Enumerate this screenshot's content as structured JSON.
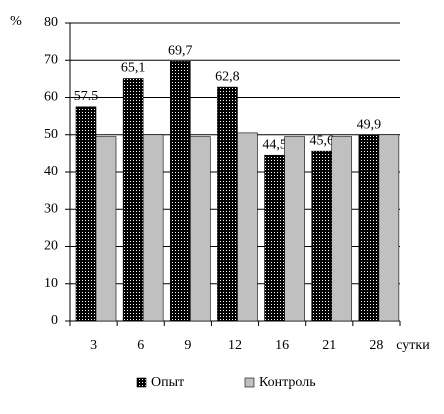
{
  "chart_data": {
    "type": "bar",
    "y_label": "%",
    "x_label": "сутки",
    "categories": [
      "3",
      "6",
      "9",
      "12",
      "16",
      "21",
      "28"
    ],
    "series": [
      {
        "name": "Опыт",
        "color": "#000000",
        "values": [
          57.5,
          65.1,
          69.7,
          62.8,
          44.5,
          45.6,
          49.9
        ],
        "value_labels": [
          "57.5",
          "65,1",
          "69,7",
          "62,8",
          "44,5",
          "45,6",
          "49,9"
        ]
      },
      {
        "name": "Контроль",
        "color": "#c0c0c0",
        "values": [
          49.5,
          50,
          49.5,
          50.5,
          49.5,
          49.5,
          50
        ]
      }
    ],
    "ylim": [
      0,
      80
    ],
    "yticks": [
      0,
      10,
      20,
      30,
      40,
      50,
      60,
      70,
      80
    ],
    "grid": true,
    "legend": "bottom"
  }
}
